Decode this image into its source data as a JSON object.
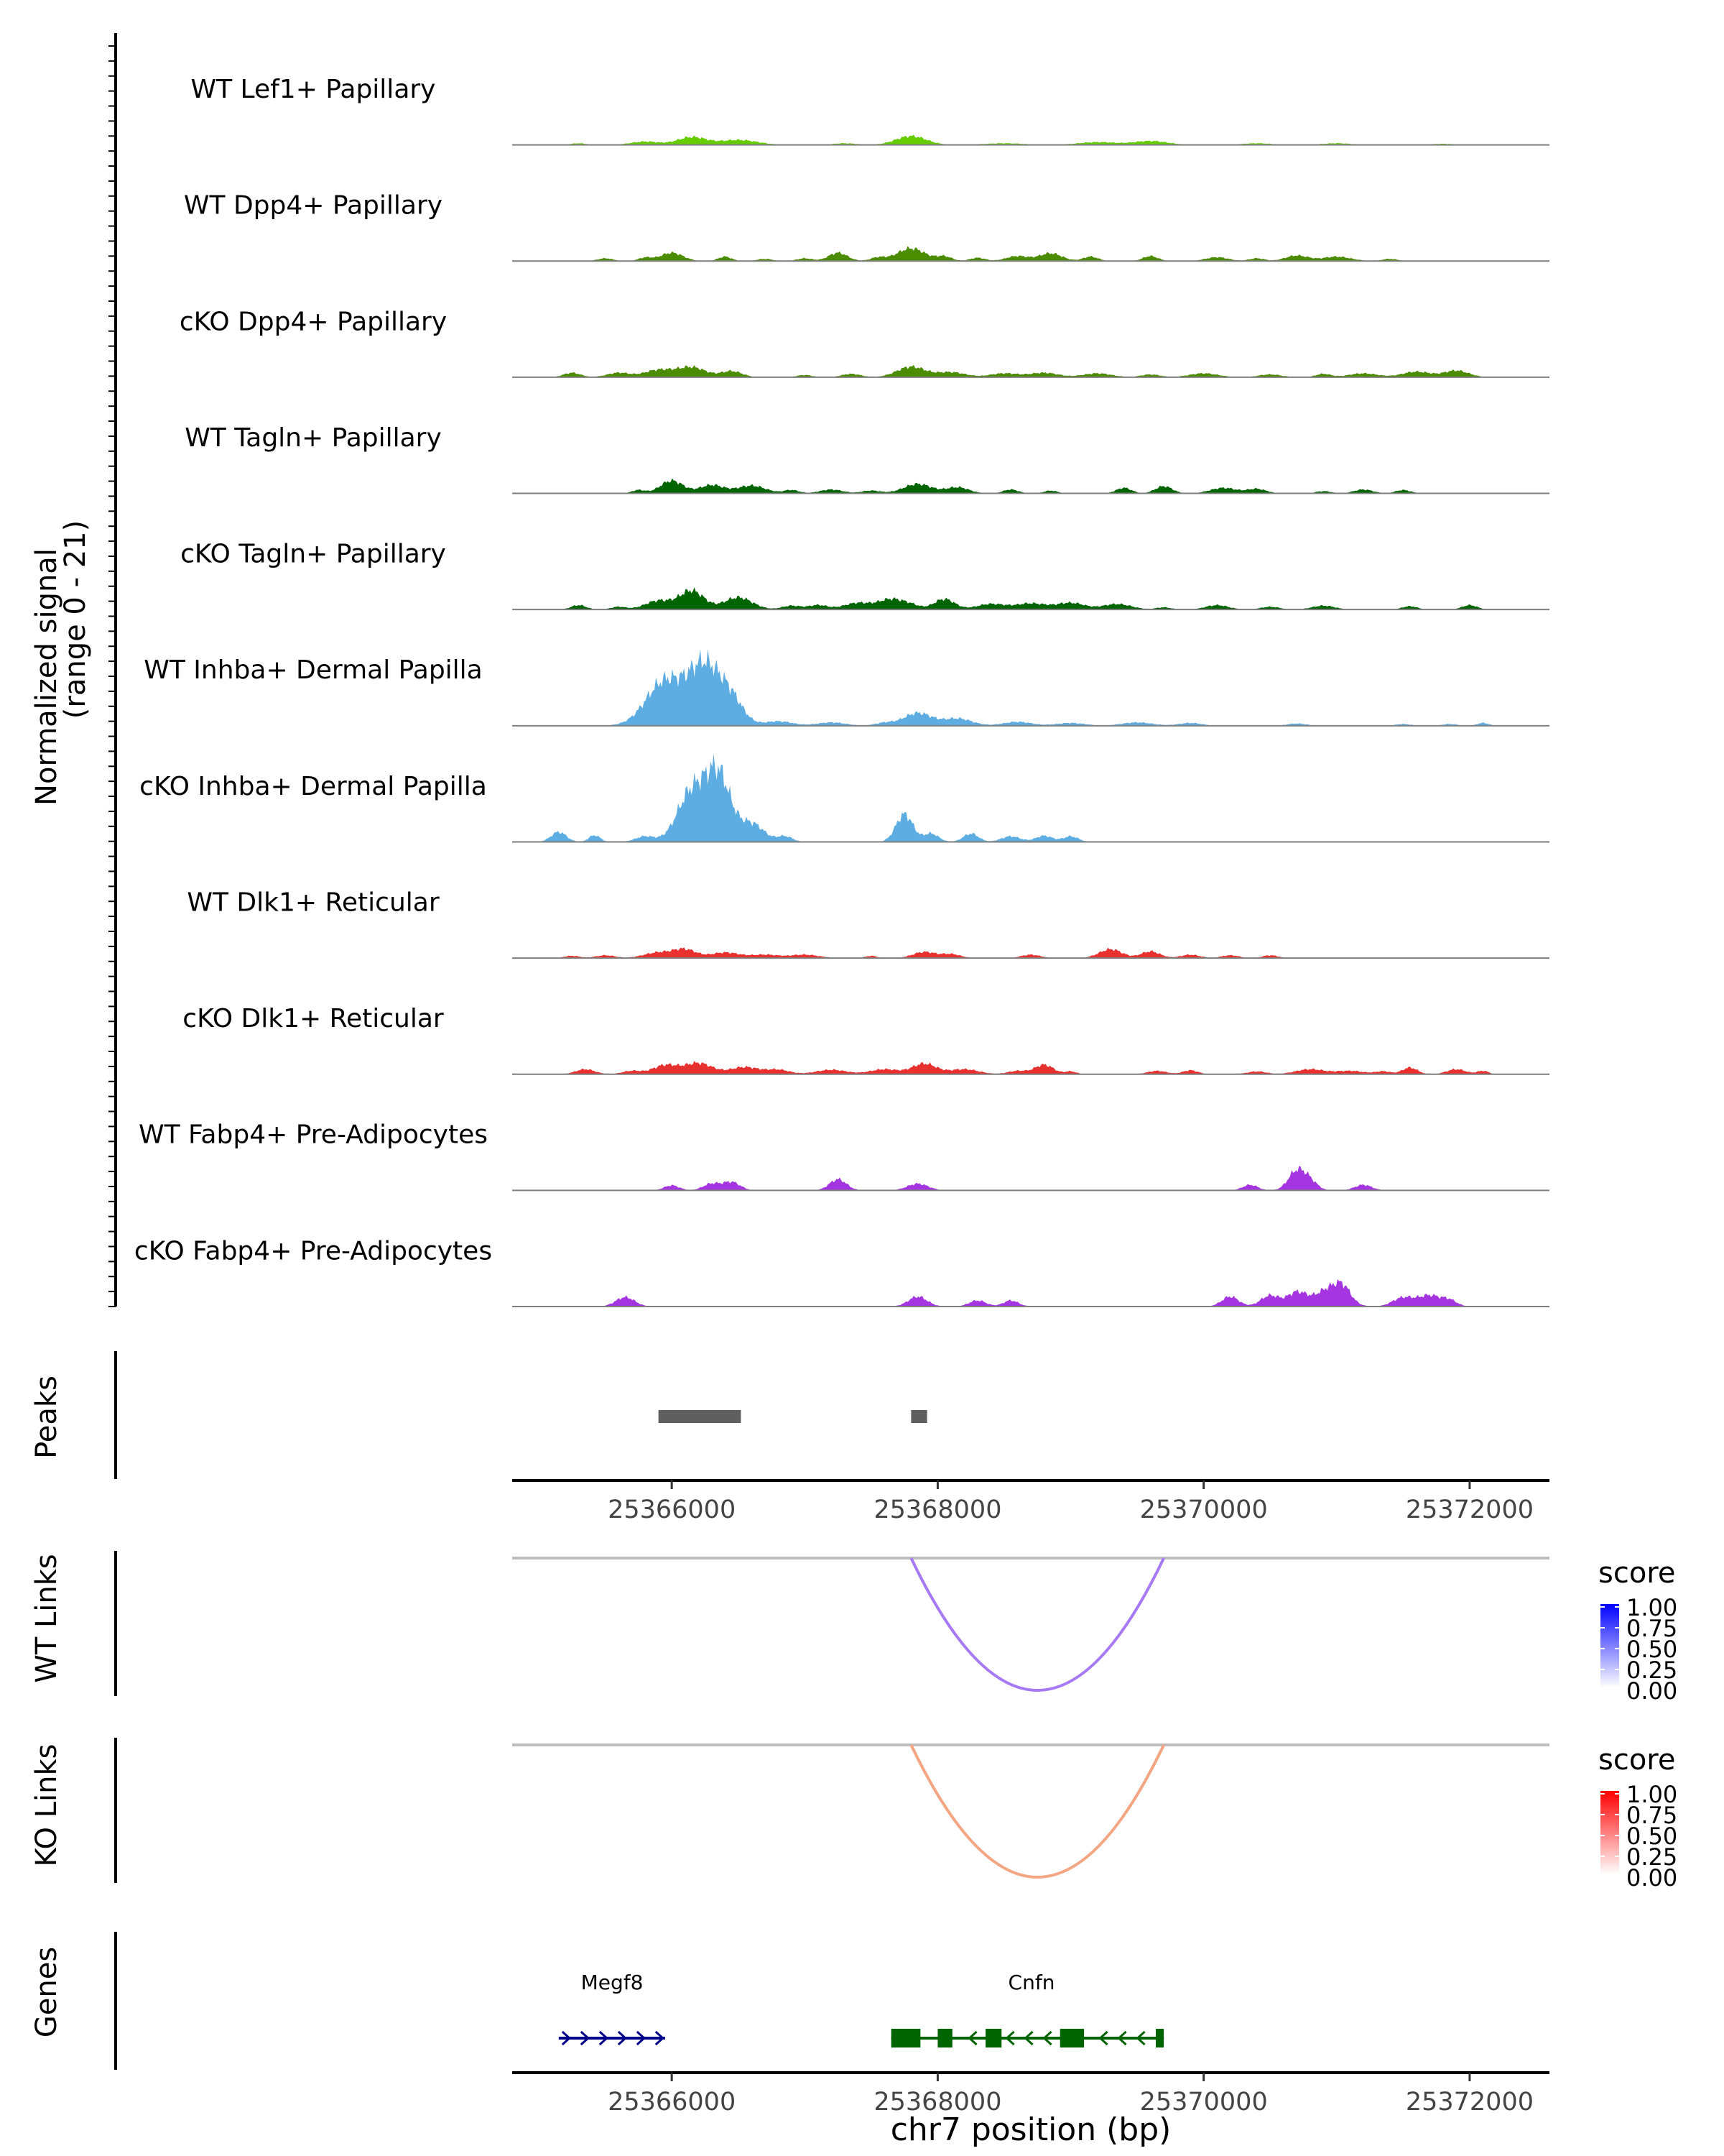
{
  "chart_data": {
    "type": "area",
    "chromosome": "chr7",
    "x_range": [
      25364800,
      25372600
    ],
    "xlabel": "chr7 position (bp)",
    "x_ticks": [
      25366000,
      25368000,
      25370000,
      25372000
    ],
    "x_tick_labels": [
      "25366000",
      "25368000",
      "25370000",
      "25372000"
    ],
    "coverage": {
      "ylabel_line1": "Normalized signal",
      "ylabel_line2": "(range 0 - 21)",
      "y_range": [
        0,
        21
      ],
      "tracks": [
        {
          "name": "WT Lef1+ Papillary",
          "color": "#66CC00",
          "peaks": [
            [
              25365300,
              0.3,
              80
            ],
            [
              25365800,
              0.6,
              150
            ],
            [
              25366150,
              1.4,
              150
            ],
            [
              25366500,
              0.9,
              200
            ],
            [
              25367300,
              0.3,
              120
            ],
            [
              25367800,
              1.6,
              160
            ],
            [
              25368500,
              0.3,
              200
            ],
            [
              25369200,
              0.5,
              200
            ],
            [
              25369600,
              0.7,
              180
            ],
            [
              25370400,
              0.3,
              150
            ],
            [
              25371000,
              0.3,
              150
            ],
            [
              25371800,
              0.2,
              120
            ]
          ]
        },
        {
          "name": "WT Dpp4+ Papillary",
          "color": "#4C8C00",
          "peaks": [
            [
              25365500,
              0.5,
              80
            ],
            [
              25365800,
              0.6,
              70
            ],
            [
              25366000,
              1.5,
              120
            ],
            [
              25366400,
              0.8,
              70
            ],
            [
              25366700,
              0.4,
              80
            ],
            [
              25367000,
              0.5,
              80
            ],
            [
              25367250,
              1.5,
              100
            ],
            [
              25367550,
              0.6,
              80
            ],
            [
              25367800,
              2.3,
              150
            ],
            [
              25368050,
              0.8,
              80
            ],
            [
              25368300,
              0.6,
              80
            ],
            [
              25368600,
              0.9,
              120
            ],
            [
              25368850,
              1.4,
              120
            ],
            [
              25369150,
              0.8,
              80
            ],
            [
              25369600,
              0.9,
              80
            ],
            [
              25370100,
              0.7,
              120
            ],
            [
              25370400,
              0.5,
              80
            ],
            [
              25370700,
              1.0,
              120
            ],
            [
              25371000,
              0.8,
              150
            ],
            [
              25371400,
              0.4,
              80
            ]
          ]
        },
        {
          "name": "cKO Dpp4+ Papillary",
          "color": "#4C8C00",
          "peaks": [
            [
              25365250,
              0.8,
              90
            ],
            [
              25365600,
              0.8,
              120
            ],
            [
              25365900,
              1.3,
              150
            ],
            [
              25366150,
              1.8,
              150
            ],
            [
              25366450,
              1.1,
              110
            ],
            [
              25367000,
              0.4,
              80
            ],
            [
              25367350,
              0.6,
              100
            ],
            [
              25367800,
              1.9,
              150
            ],
            [
              25368100,
              0.9,
              150
            ],
            [
              25368500,
              0.7,
              150
            ],
            [
              25368800,
              0.8,
              150
            ],
            [
              25369200,
              0.7,
              150
            ],
            [
              25369600,
              0.5,
              100
            ],
            [
              25370000,
              0.7,
              150
            ],
            [
              25370500,
              0.5,
              120
            ],
            [
              25370900,
              0.6,
              80
            ],
            [
              25371200,
              0.7,
              150
            ],
            [
              25371600,
              1.0,
              150
            ],
            [
              25371900,
              1.2,
              130
            ]
          ]
        },
        {
          "name": "WT Tagln+ Papillary",
          "color": "#006400",
          "peaks": [
            [
              25365750,
              0.6,
              70
            ],
            [
              25366000,
              2.3,
              120
            ],
            [
              25366300,
              1.5,
              130
            ],
            [
              25366600,
              1.4,
              150
            ],
            [
              25366900,
              0.6,
              80
            ],
            [
              25367200,
              0.7,
              120
            ],
            [
              25367500,
              0.5,
              100
            ],
            [
              25367850,
              1.7,
              150
            ],
            [
              25368150,
              1.1,
              120
            ],
            [
              25368550,
              0.7,
              80
            ],
            [
              25368850,
              0.5,
              70
            ],
            [
              25369400,
              1.0,
              80
            ],
            [
              25369700,
              1.3,
              90
            ],
            [
              25370150,
              1.0,
              140
            ],
            [
              25370400,
              0.8,
              100
            ],
            [
              25370900,
              0.4,
              80
            ],
            [
              25371200,
              0.7,
              100
            ],
            [
              25371500,
              0.6,
              80
            ]
          ]
        },
        {
          "name": "cKO Tagln+ Papillary",
          "color": "#006400",
          "peaks": [
            [
              25365300,
              0.8,
              80
            ],
            [
              25365600,
              0.5,
              80
            ],
            [
              25365900,
              1.6,
              140
            ],
            [
              25366150,
              3.4,
              130
            ],
            [
              25366500,
              2.2,
              150
            ],
            [
              25366900,
              0.7,
              100
            ],
            [
              25367100,
              0.8,
              100
            ],
            [
              25367400,
              1.2,
              150
            ],
            [
              25367650,
              1.8,
              130
            ],
            [
              25367800,
              0.7,
              100
            ],
            [
              25368050,
              1.9,
              110
            ],
            [
              25368400,
              1.0,
              150
            ],
            [
              25368700,
              1.1,
              160
            ],
            [
              25369000,
              1.2,
              150
            ],
            [
              25369350,
              1.0,
              150
            ],
            [
              25369700,
              0.4,
              80
            ],
            [
              25370100,
              0.8,
              120
            ],
            [
              25370500,
              0.5,
              100
            ],
            [
              25370900,
              0.7,
              120
            ],
            [
              25371550,
              0.6,
              80
            ],
            [
              25372000,
              0.8,
              80
            ]
          ]
        },
        {
          "name": "WT Inhba+ Dermal Papilla",
          "color": "#5DADE2",
          "peaks": [
            [
              25365950,
              8.0,
              200
            ],
            [
              25366250,
              10.5,
              170
            ],
            [
              25366450,
              4.0,
              130
            ],
            [
              25366800,
              0.8,
              150
            ],
            [
              25367200,
              0.6,
              150
            ],
            [
              25367600,
              0.5,
              100
            ],
            [
              25367850,
              2.3,
              150
            ],
            [
              25368150,
              1.3,
              150
            ],
            [
              25368600,
              0.7,
              150
            ],
            [
              25369000,
              0.5,
              150
            ],
            [
              25369500,
              0.6,
              160
            ],
            [
              25369900,
              0.5,
              120
            ],
            [
              25370700,
              0.4,
              100
            ],
            [
              25371500,
              0.3,
              80
            ],
            [
              25371850,
              0.3,
              80
            ],
            [
              25372100,
              0.5,
              60
            ]
          ]
        },
        {
          "name": "cKO Inhba+ Dermal Papilla",
          "color": "#5DADE2",
          "peaks": [
            [
              25365150,
              1.8,
              80
            ],
            [
              25365420,
              1.2,
              60
            ],
            [
              25365800,
              1.0,
              100
            ],
            [
              25366150,
              9.0,
              150
            ],
            [
              25366350,
              11.8,
              130
            ],
            [
              25366600,
              3.3,
              130
            ],
            [
              25366850,
              1.0,
              80
            ],
            [
              25367750,
              5.0,
              90
            ],
            [
              25367950,
              1.5,
              80
            ],
            [
              25368250,
              1.5,
              80
            ],
            [
              25368550,
              1.0,
              100
            ],
            [
              25368800,
              1.1,
              90
            ],
            [
              25369000,
              1.0,
              80
            ]
          ]
        },
        {
          "name": "WT Dlk1+ Reticular",
          "color": "#E8312F",
          "peaks": [
            [
              25365250,
              0.4,
              80
            ],
            [
              25365500,
              0.5,
              100
            ],
            [
              25365900,
              1.0,
              150
            ],
            [
              25366100,
              1.5,
              120
            ],
            [
              25366400,
              1.0,
              150
            ],
            [
              25366700,
              0.6,
              150
            ],
            [
              25367000,
              0.6,
              150
            ],
            [
              25367500,
              0.4,
              60
            ],
            [
              25367900,
              1.1,
              120
            ],
            [
              25368100,
              0.7,
              100
            ],
            [
              25368700,
              0.6,
              100
            ],
            [
              25369300,
              1.6,
              120
            ],
            [
              25369600,
              1.2,
              100
            ],
            [
              25369900,
              0.6,
              100
            ],
            [
              25370200,
              0.5,
              90
            ],
            [
              25370500,
              0.5,
              80
            ]
          ]
        },
        {
          "name": "cKO Dlk1+ Reticular",
          "color": "#E8312F",
          "peaks": [
            [
              25365350,
              0.9,
              100
            ],
            [
              25365700,
              0.6,
              100
            ],
            [
              25365950,
              1.6,
              130
            ],
            [
              25366200,
              2.0,
              150
            ],
            [
              25366550,
              1.3,
              150
            ],
            [
              25366800,
              0.8,
              120
            ],
            [
              25367200,
              0.8,
              160
            ],
            [
              25367600,
              0.9,
              150
            ],
            [
              25367900,
              1.9,
              130
            ],
            [
              25368200,
              0.9,
              150
            ],
            [
              25368600,
              0.6,
              100
            ],
            [
              25368800,
              1.7,
              100
            ],
            [
              25369000,
              0.5,
              60
            ],
            [
              25369650,
              0.6,
              100
            ],
            [
              25369900,
              0.7,
              80
            ],
            [
              25370400,
              0.5,
              100
            ],
            [
              25370800,
              0.9,
              150
            ],
            [
              25371100,
              0.6,
              150
            ],
            [
              25371350,
              0.5,
              80
            ],
            [
              25371550,
              1.2,
              80
            ],
            [
              25371900,
              0.9,
              100
            ],
            [
              25372100,
              0.6,
              60
            ]
          ]
        },
        {
          "name": "WT Fabp4+ Pre-Adipocytes",
          "color": "#A435E0",
          "peaks": [
            [
              25366000,
              0.9,
              80
            ],
            [
              25366300,
              1.2,
              90
            ],
            [
              25366450,
              1.5,
              90
            ],
            [
              25367250,
              2.0,
              90
            ],
            [
              25367850,
              1.2,
              110
            ],
            [
              25370350,
              1.0,
              80
            ],
            [
              25370700,
              3.5,
              90
            ],
            [
              25370800,
              1.5,
              80
            ],
            [
              25371200,
              1.0,
              90
            ]
          ]
        },
        {
          "name": "cKO Fabp4+ Pre-Adipocytes",
          "color": "#A435E0",
          "peaks": [
            [
              25365650,
              1.7,
              100
            ],
            [
              25367850,
              1.8,
              100
            ],
            [
              25368300,
              1.1,
              90
            ],
            [
              25368550,
              1.1,
              80
            ],
            [
              25370200,
              1.8,
              90
            ],
            [
              25370500,
              2.0,
              100
            ],
            [
              25370700,
              2.5,
              100
            ],
            [
              25370950,
              3.3,
              150
            ],
            [
              25371050,
              2.0,
              80
            ],
            [
              25371500,
              1.6,
              110
            ],
            [
              25371700,
              2.0,
              120
            ],
            [
              25371850,
              1.0,
              80
            ]
          ]
        }
      ]
    },
    "peaks_track": {
      "label": "Peaks",
      "regions": [
        [
          25365900,
          25366520
        ],
        [
          25367800,
          25367920
        ]
      ]
    },
    "links": [
      {
        "label": "WT Links",
        "start": 25367800,
        "end": 25369700,
        "score": 0.5,
        "legend": {
          "title": "score",
          "ticks": [
            "1.00",
            "0.75",
            "0.50",
            "0.25",
            "0.00"
          ],
          "low": "#FFFFFF",
          "high": "#0000FF",
          "arc_color": "#A879F5"
        }
      },
      {
        "label": "KO Links",
        "start": 25367800,
        "end": 25369700,
        "score": 0.5,
        "legend": {
          "title": "score",
          "ticks": [
            "1.00",
            "0.75",
            "0.50",
            "0.25",
            "0.00"
          ],
          "low": "#FFFFFF",
          "high": "#FF0000",
          "arc_color": "#F4A582"
        }
      }
    ],
    "genes": {
      "label": "Genes",
      "items": [
        {
          "name": "Megf8",
          "start": 25365150,
          "end": 25365950,
          "strand": "+",
          "color": "#00008B",
          "exons": []
        },
        {
          "name": "Cnfn",
          "start": 25367650,
          "end": 25369700,
          "strand": "-",
          "color": "#006400",
          "exons": [
            [
              25367650,
              25367870
            ],
            [
              25368000,
              25368110
            ],
            [
              25368360,
              25368480
            ],
            [
              25368920,
              25369100
            ],
            [
              25369640,
              25369700
            ]
          ]
        }
      ]
    }
  }
}
